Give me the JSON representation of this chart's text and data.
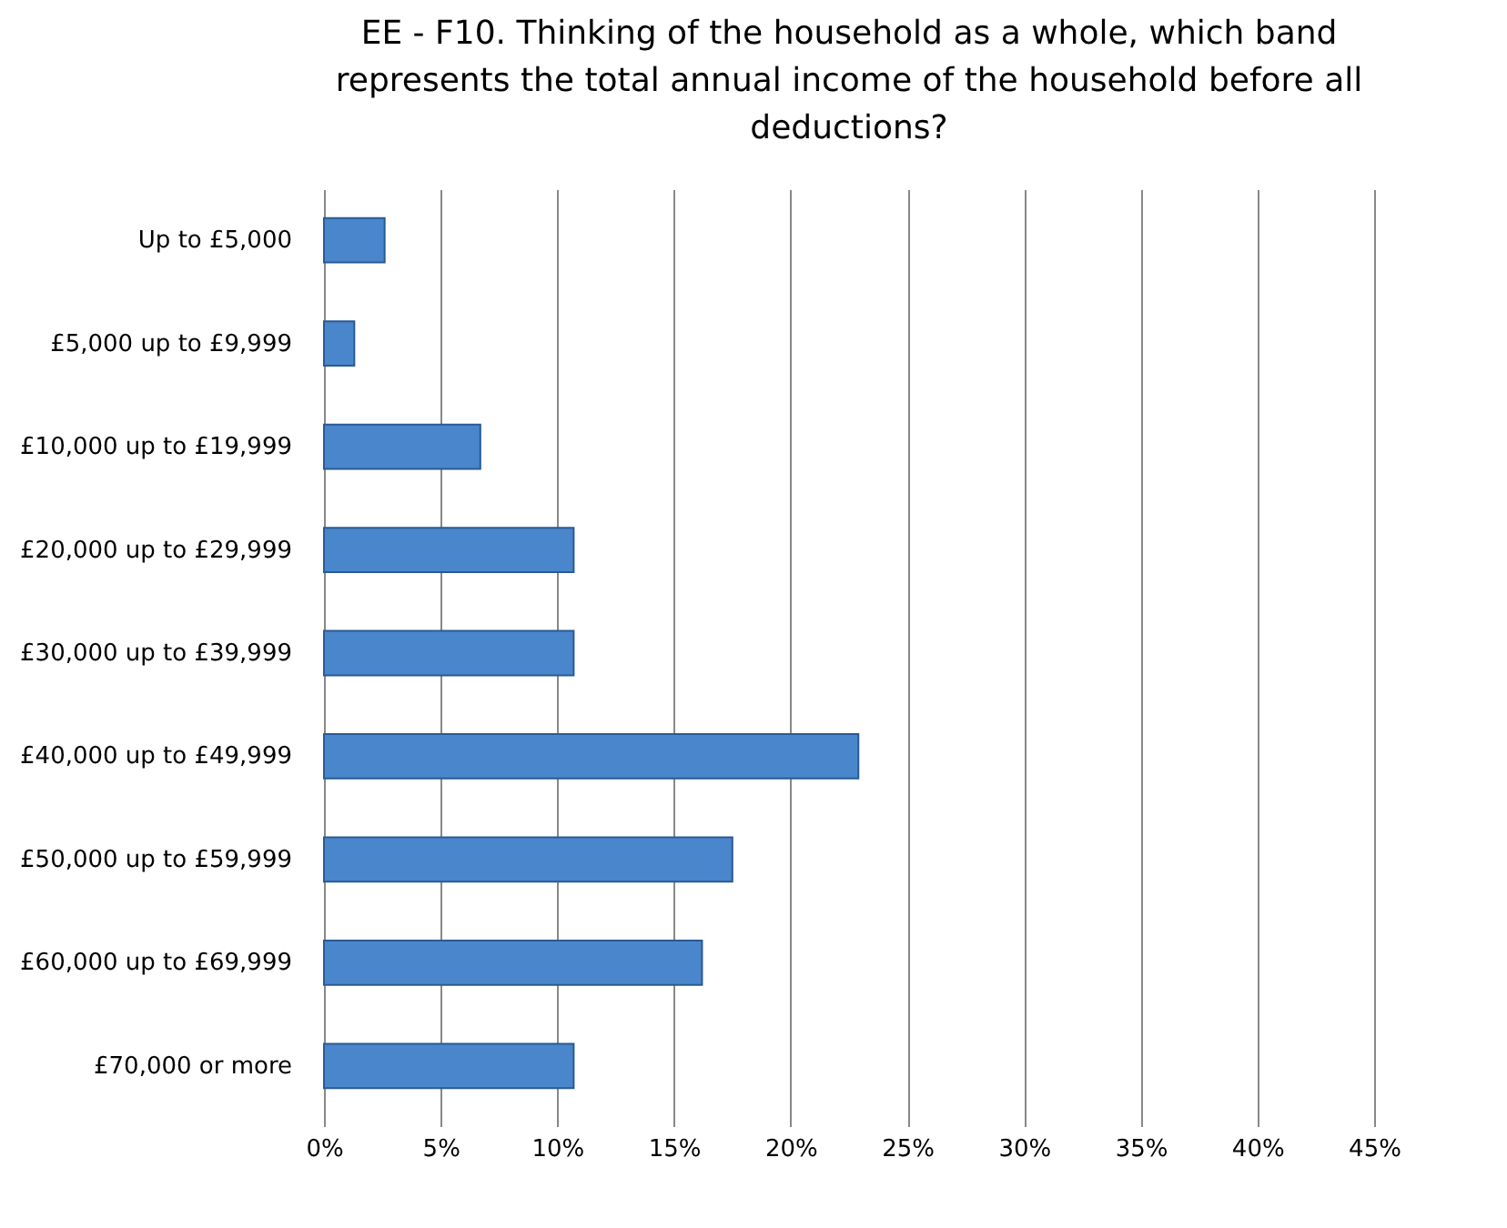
{
  "chart_data": {
    "type": "bar",
    "orientation": "horizontal",
    "title": "EE - F10. Thinking of the household as a whole, which band represents the total annual income of the household before all deductions?",
    "categories": [
      "Up to £5,000",
      "£5,000 up to £9,999",
      "£10,000 up to £19,999",
      "£20,000 up to £29,999",
      "£30,000 up to £39,999",
      "£40,000 up to £49,999",
      "£50,000 up to £59,999",
      "£60,000 up to £69,999",
      "£70,000 or more"
    ],
    "values": [
      2.6,
      1.3,
      6.7,
      10.7,
      10.7,
      22.9,
      17.5,
      16.2,
      10.7
    ],
    "color": "#4a86cc",
    "xlim": [
      0,
      45
    ],
    "xticks": [
      {
        "value": 0,
        "label": "0%"
      },
      {
        "value": 5,
        "label": "5%"
      },
      {
        "value": 10,
        "label": "10%"
      },
      {
        "value": 15,
        "label": "15%"
      },
      {
        "value": 20,
        "label": "20%"
      },
      {
        "value": 25,
        "label": "25%"
      },
      {
        "value": 30,
        "label": "30%"
      },
      {
        "value": 35,
        "label": "35%"
      },
      {
        "value": 40,
        "label": "40%"
      },
      {
        "value": 45,
        "label": "45%"
      }
    ],
    "grid": "x"
  }
}
